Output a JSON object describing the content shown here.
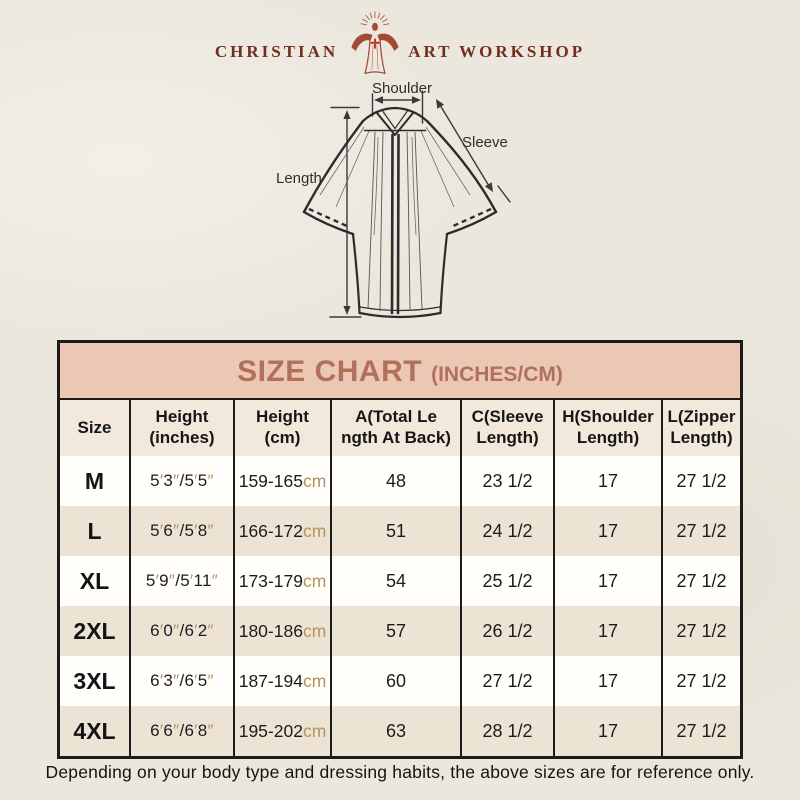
{
  "brand": {
    "left": "CHRISTIAN",
    "right": "ART WORKSHOP"
  },
  "diagram": {
    "shoulder_label": "Shoulder",
    "sleeve_label": "Sleeve",
    "length_label": "Length"
  },
  "size_chart": {
    "title": "SIZE CHART",
    "unit_note": "(INCHES/CM)",
    "columns": [
      "Size",
      "Height\n(inches)",
      "Height\n(cm)",
      "A(Total Le\nngth At Back)",
      "C(Sleeve\nLength)",
      "H(Shoulder\nLength)",
      "L(Zipper\nLength)"
    ],
    "rows": [
      {
        "size": "M",
        "height_in": "5′3″/5′5″",
        "height_cm": "159-165cm",
        "total_length": "48",
        "sleeve": "23 1/2",
        "shoulder": "17",
        "zipper": "27 1/2"
      },
      {
        "size": "L",
        "height_in": "5′6″/5′8″",
        "height_cm": "166-172cm",
        "total_length": "51",
        "sleeve": "24 1/2",
        "shoulder": "17",
        "zipper": "27 1/2"
      },
      {
        "size": "XL",
        "height_in": "5′9″/5′11″",
        "height_cm": "173-179cm",
        "total_length": "54",
        "sleeve": "25 1/2",
        "shoulder": "17",
        "zipper": "27 1/2"
      },
      {
        "size": "2XL",
        "height_in": "6′0″/6′2″",
        "height_cm": "180-186cm",
        "total_length": "57",
        "sleeve": "26 1/2",
        "shoulder": "17",
        "zipper": "27 1/2"
      },
      {
        "size": "3XL",
        "height_in": "6′3″/6′5″",
        "height_cm": "187-194cm",
        "total_length": "60",
        "sleeve": "27 1/2",
        "shoulder": "17",
        "zipper": "27 1/2"
      },
      {
        "size": "4XL",
        "height_in": "6′6″/6′8″",
        "height_cm": "195-202cm",
        "total_length": "63",
        "sleeve": "28 1/2",
        "shoulder": "17",
        "zipper": "27 1/2"
      }
    ]
  },
  "footer": {
    "note": "Depending on your body type and dressing habits, the above sizes are for reference only."
  },
  "colors": {
    "page_bg": "#ebe7dd",
    "band_bg": "#ecc8b4",
    "band_text": "#b0705a",
    "row_alt_bg": "#ece3d4",
    "header_bg": "#f2e9dc",
    "accent_tan": "#b2945f",
    "logo_figure": "#a34a33",
    "logo_text": "#702e1e",
    "table_border": "#1b1b1b"
  }
}
